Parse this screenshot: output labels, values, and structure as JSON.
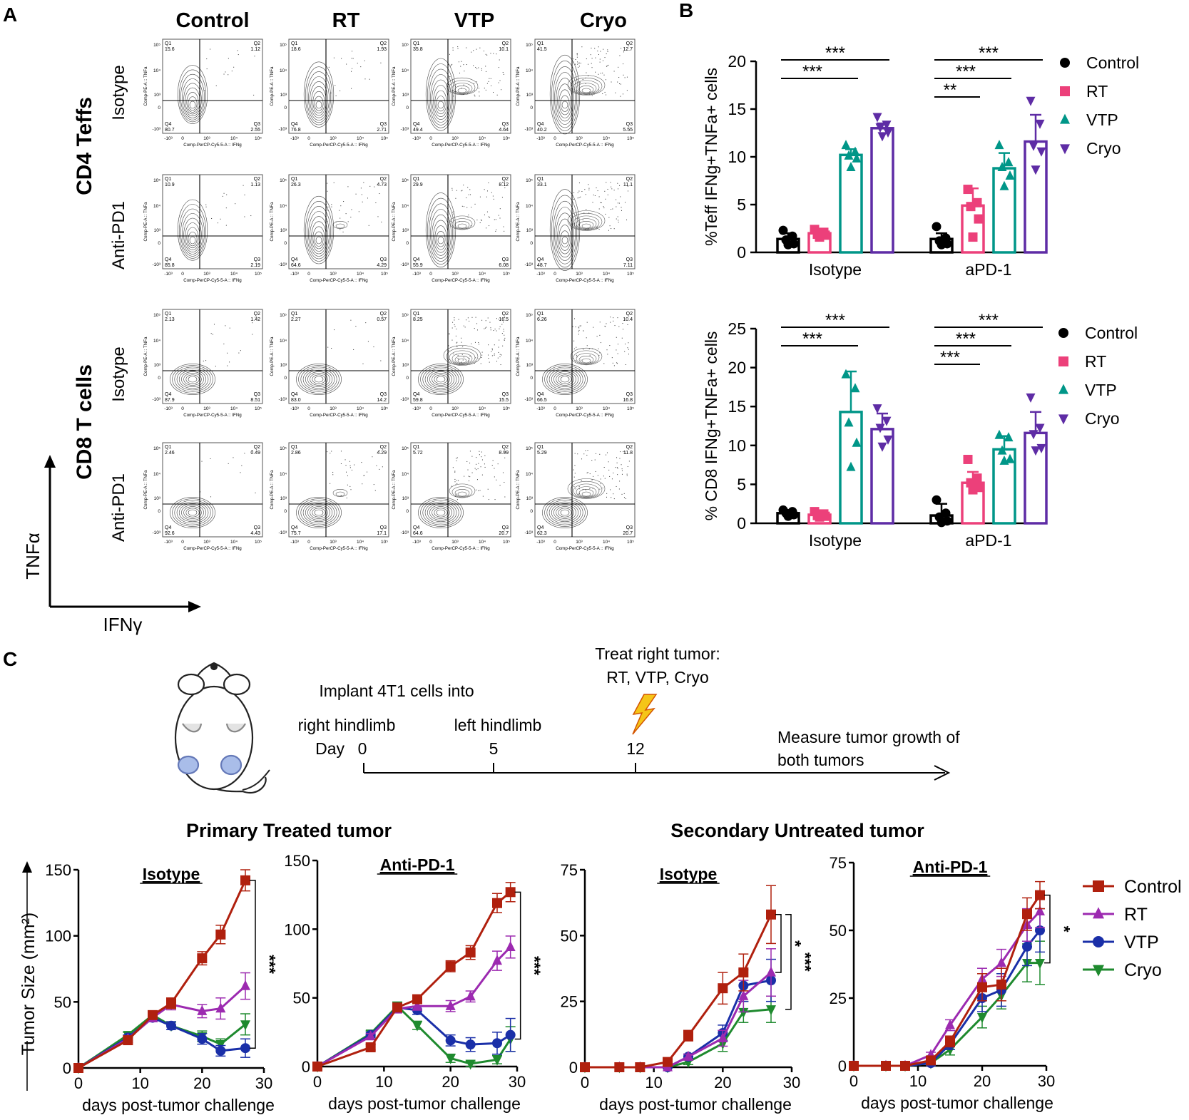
{
  "colors": {
    "control": "#000000",
    "rt": "#ec407a",
    "vtp": "#009688",
    "cryo": "#5e2ca5",
    "curve_control": "#b0200e",
    "curve_rt": "#9c2ab0",
    "curve_vtp": "#1a2fa8",
    "curve_cryo": "#1e8a2e"
  },
  "panel_a": {
    "letter": "A",
    "columns": [
      "Control",
      "RT",
      "VTP",
      "Cryo"
    ],
    "groups": [
      {
        "label": "CD4 Teffs",
        "rows": [
          "Isotype",
          "Anti-PD1"
        ]
      },
      {
        "label": "CD8 T cells",
        "rows": [
          "Isotype",
          "Anti-PD1"
        ]
      }
    ],
    "y_axis_label": "TNFα",
    "x_axis_label": "IFNγ",
    "plot_y_title": "Comp-PE-A :: TNFa",
    "plot_x_title": "Comp-PerCP-Cy5-5-A :: IFNg",
    "axis_ticks": {
      "y": [
        "10⁵",
        "10⁴",
        "10³",
        "0",
        "-10³"
      ],
      "x": [
        "-10³",
        "0",
        "10³",
        "10⁴",
        "10⁵"
      ]
    },
    "quadrant_names": [
      "Q1",
      "Q2",
      "Q3",
      "Q4"
    ],
    "plots": [
      [
        [
          "15.6",
          "1.12",
          "2.55",
          "80.7"
        ],
        [
          "18.6",
          "1.93",
          "2.71",
          "76.8"
        ],
        [
          "35.8",
          "10.1",
          "4.64",
          "49.4"
        ],
        [
          "41.5",
          "12.7",
          "5.55",
          "40.2"
        ]
      ],
      [
        [
          "10.9",
          "1.13",
          "2.19",
          "85.8"
        ],
        [
          "26.3",
          "4.73",
          "4.29",
          "64.6"
        ],
        [
          "29.9",
          "8.12",
          "6.08",
          "55.9"
        ],
        [
          "33.1",
          "11.1",
          "7.11",
          "48.7"
        ]
      ],
      [
        [
          "2.13",
          "1.42",
          "8.51",
          "87.9"
        ],
        [
          "2.27",
          "0.57",
          "14.2",
          "83.0"
        ],
        [
          "8.25",
          "16.5",
          "15.5",
          "59.8"
        ],
        [
          "6.26",
          "10.4",
          "16.8",
          "66.5"
        ]
      ],
      [
        [
          "2.46",
          "0.49",
          "4.43",
          "92.6"
        ],
        [
          "2.86",
          "4.29",
          "17.1",
          "75.7"
        ],
        [
          "5.72",
          "8.99",
          "20.7",
          "64.6"
        ],
        [
          "5.29",
          "11.8",
          "20.7",
          "62.3"
        ]
      ]
    ]
  },
  "panel_b": {
    "letter": "B"
  },
  "panel_c": {
    "letter": "C",
    "timeline": {
      "implant_label": "Implant 4T1 cells into",
      "right_label": "right hindlimb",
      "left_label": "left hindlimb",
      "day_label": "Day",
      "days": [
        "0",
        "5",
        "12"
      ],
      "treat_label_1": "Treat right tumor:",
      "treat_label_2": "RT, VTP, Cryo",
      "measure_label_1": "Measure tumor growth of",
      "measure_label_2": "both tumors"
    },
    "primary_title": "Primary Treated tumor",
    "secondary_title": "Secondary Untreated tumor",
    "y_axis_label": "Tumor Size (mm²)"
  },
  "chart_data": [
    {
      "type": "bar",
      "id": "cd4",
      "ylabel": "%Teff IFNg+TNFa+ cells",
      "ylim": [
        0,
        20
      ],
      "yticks": [
        0,
        5,
        10,
        15,
        20
      ],
      "categories": [
        "Isotype",
        "aPD-1"
      ],
      "series": [
        {
          "name": "Control",
          "marker": "circle",
          "means": [
            1.4,
            1.4
          ],
          "sd": [
            0.6,
            0.6
          ],
          "points": [
            [
              2.3,
              1.7,
              1.3,
              0.9,
              0.8
            ],
            [
              2.7,
              1.5,
              1.2,
              0.9,
              0.8
            ]
          ]
        },
        {
          "name": "RT",
          "marker": "square",
          "means": [
            2.0,
            4.9
          ],
          "sd": [
            0.3,
            1.8
          ],
          "points": [
            [
              2.4,
              2.1,
              1.9,
              1.8,
              1.6
            ],
            [
              6.6,
              5.2,
              4.8,
              3.5,
              1.6
            ]
          ]
        },
        {
          "name": "VTP",
          "marker": "triangle",
          "means": [
            10.2,
            8.8
          ],
          "sd": [
            0.6,
            1.6
          ],
          "points": [
            [
              11.2,
              10.5,
              10.1,
              9.8,
              8.9
            ],
            [
              11.2,
              9.4,
              8.9,
              8.0,
              6.9
            ]
          ]
        },
        {
          "name": "Cryo",
          "marker": "triangle-down",
          "means": [
            13.0,
            11.6
          ],
          "sd": [
            0.5,
            2.8
          ],
          "points": [
            [
              14.2,
              13.4,
              13.1,
              12.6,
              12.2
            ],
            [
              15.9,
              13.5,
              11.2,
              10.6,
              8.7
            ]
          ]
        }
      ],
      "significance": [
        {
          "group": "Isotype",
          "from": "Control",
          "to": "Cryo",
          "label": "***"
        },
        {
          "group": "Isotype",
          "from": "Control",
          "to": "VTP",
          "label": "***"
        },
        {
          "group": "aPD-1",
          "from": "Control",
          "to": "Cryo",
          "label": "***"
        },
        {
          "group": "aPD-1",
          "from": "Control",
          "to": "VTP",
          "label": "***"
        },
        {
          "group": "aPD-1",
          "from": "Control",
          "to": "RT",
          "label": "**"
        }
      ]
    },
    {
      "type": "bar",
      "id": "cd8",
      "ylabel": "% CD8 IFNg+TNFa+ cells",
      "ylim": [
        0,
        25
      ],
      "yticks": [
        0,
        5,
        10,
        15,
        20,
        25
      ],
      "categories": [
        "Isotype",
        "aPD-1"
      ],
      "series": [
        {
          "name": "Control",
          "marker": "circle",
          "means": [
            1.3,
            1.0
          ],
          "sd": [
            0.4,
            1.5
          ],
          "points": [
            [
              1.7,
              1.5,
              1.3,
              1.1,
              0.9
            ],
            [
              3.0,
              1.3,
              0.8,
              0.3,
              0.1
            ]
          ]
        },
        {
          "name": "RT",
          "marker": "square",
          "means": [
            1.1,
            5.2
          ],
          "sd": [
            0.3,
            1.4
          ],
          "points": [
            [
              1.5,
              1.2,
              1.0,
              0.9,
              0.8
            ],
            [
              8.2,
              5.8,
              5.2,
              4.6,
              4.3
            ]
          ]
        },
        {
          "name": "VTP",
          "marker": "triangle",
          "means": [
            14.3,
            9.5
          ],
          "sd": [
            5.2,
            1.7
          ],
          "points": [
            [
              19.1,
              17.3,
              12.9,
              10.3,
              7.2
            ],
            [
              11.3,
              11.0,
              9.3,
              8.2,
              8.0
            ]
          ]
        },
        {
          "name": "Cryo",
          "marker": "triangle-down",
          "means": [
            12.1,
            11.6
          ],
          "sd": [
            2.0,
            2.7
          ],
          "points": [
            [
              14.8,
              13.2,
              12.3,
              10.8,
              9.9
            ],
            [
              16.2,
              12.3,
              11.5,
              9.7,
              9.4
            ]
          ]
        }
      ],
      "significance": [
        {
          "group": "Isotype",
          "from": "Control",
          "to": "Cryo",
          "label": "***"
        },
        {
          "group": "Isotype",
          "from": "Control",
          "to": "VTP",
          "label": "***"
        },
        {
          "group": "aPD-1",
          "from": "Control",
          "to": "Cryo",
          "label": "***"
        },
        {
          "group": "aPD-1",
          "from": "Control",
          "to": "VTP",
          "label": "***"
        },
        {
          "group": "aPD-1",
          "from": "Control",
          "to": "RT",
          "label": "***"
        }
      ]
    },
    {
      "type": "line",
      "id": "prim_iso",
      "title": "Isotype",
      "xlabel": "days post-tumor challenge",
      "xlim": [
        0,
        30
      ],
      "ylim": [
        0,
        150
      ],
      "xticks": [
        0,
        10,
        20,
        30
      ],
      "yticks": [
        0,
        50,
        100,
        150
      ],
      "series": [
        {
          "name": "Control",
          "x": [
            0,
            8,
            12,
            15,
            20,
            23,
            27
          ],
          "y": [
            0,
            21,
            40,
            49,
            83,
            101,
            142
          ],
          "err": [
            0,
            2,
            3,
            4,
            5,
            7,
            8
          ]
        },
        {
          "name": "RT",
          "x": [
            0,
            8,
            12,
            15,
            20,
            23,
            27
          ],
          "y": [
            0,
            22,
            38,
            48,
            43,
            45,
            62
          ],
          "err": [
            0,
            2,
            3,
            4,
            5,
            8,
            10
          ]
        },
        {
          "name": "VTP",
          "x": [
            0,
            8,
            12,
            15,
            20,
            23,
            27
          ],
          "y": [
            0,
            23,
            38,
            32,
            22,
            13,
            15
          ],
          "err": [
            0,
            2,
            3,
            3,
            4,
            4,
            7
          ]
        },
        {
          "name": "Cryo",
          "x": [
            0,
            8,
            12,
            15,
            20,
            23,
            27
          ],
          "y": [
            0,
            25,
            40,
            32,
            24,
            18,
            33
          ],
          "err": [
            0,
            2,
            3,
            3,
            4,
            4,
            8
          ]
        }
      ],
      "brackets": [
        {
          "from": "Control",
          "to": "VTP",
          "at_x": 27,
          "label": "***"
        }
      ]
    },
    {
      "type": "line",
      "id": "prim_pd1",
      "title": "Anti-PD-1",
      "xlabel": "days post-tumor challenge",
      "xlim": [
        0,
        30
      ],
      "ylim": [
        0,
        150
      ],
      "xticks": [
        0,
        10,
        20,
        30
      ],
      "yticks": [
        0,
        50,
        100,
        150
      ],
      "series": [
        {
          "name": "Control",
          "x": [
            0,
            8,
            12,
            15,
            20,
            23,
            27,
            29
          ],
          "y": [
            0,
            14,
            43,
            49,
            73,
            83,
            119,
            127
          ],
          "err": [
            0,
            2,
            3,
            3,
            4,
            5,
            7,
            7
          ]
        },
        {
          "name": "RT",
          "x": [
            0,
            8,
            12,
            15,
            20,
            23,
            27,
            29
          ],
          "y": [
            0,
            22,
            42,
            44,
            44,
            51,
            77,
            87
          ],
          "err": [
            0,
            2,
            3,
            3,
            4,
            4,
            7,
            8
          ]
        },
        {
          "name": "VTP",
          "x": [
            0,
            8,
            12,
            15,
            20,
            23,
            27,
            29
          ],
          "y": [
            0,
            23,
            43,
            41,
            19,
            16,
            17,
            23
          ],
          "err": [
            0,
            2,
            3,
            3,
            4,
            5,
            8,
            12
          ]
        },
        {
          "name": "Cryo",
          "x": [
            0,
            8,
            12,
            15,
            20,
            23,
            27,
            29
          ],
          "y": [
            0,
            24,
            44,
            30,
            6,
            2,
            5,
            20
          ],
          "err": [
            0,
            2,
            3,
            3,
            3,
            2,
            3,
            9
          ]
        }
      ],
      "brackets": [
        {
          "from": "Control",
          "to": "Cryo",
          "at_x": 29,
          "label": "***"
        }
      ]
    },
    {
      "type": "line",
      "id": "sec_iso",
      "title": "Isotype",
      "xlabel": "days post-tumor challenge",
      "xlim": [
        0,
        30
      ],
      "ylim": [
        0,
        75
      ],
      "xticks": [
        0,
        10,
        20,
        30
      ],
      "yticks": [
        0,
        25,
        50,
        75
      ],
      "series": [
        {
          "name": "Control",
          "x": [
            0,
            5,
            8,
            12,
            15,
            20,
            23,
            27
          ],
          "y": [
            0,
            0,
            0,
            2,
            12,
            30,
            36,
            58
          ],
          "err": [
            0,
            0,
            0,
            1,
            2,
            6,
            7,
            11
          ]
        },
        {
          "name": "RT",
          "x": [
            0,
            5,
            8,
            12,
            15,
            20,
            23,
            27
          ],
          "y": [
            0,
            0,
            0,
            0,
            4,
            11,
            27,
            36
          ],
          "err": [
            0,
            0,
            0,
            0,
            1,
            3,
            6,
            9
          ]
        },
        {
          "name": "VTP",
          "x": [
            0,
            5,
            8,
            12,
            15,
            20,
            23,
            27
          ],
          "y": [
            0,
            0,
            0,
            0,
            4,
            13,
            31,
            33
          ],
          "err": [
            0,
            0,
            0,
            0,
            1,
            3,
            6,
            8
          ]
        },
        {
          "name": "Cryo",
          "x": [
            0,
            5,
            8,
            12,
            15,
            20,
            23,
            27
          ],
          "y": [
            0,
            0,
            0,
            0,
            2,
            9,
            21,
            22
          ],
          "err": [
            0,
            0,
            0,
            0,
            1,
            3,
            4,
            5
          ]
        }
      ],
      "brackets": [
        {
          "from": "Control",
          "to": "RT",
          "at_x": 27,
          "label": "*"
        },
        {
          "from": "Control",
          "to": "Cryo",
          "at_x": 27,
          "label": "***",
          "outer": true
        }
      ]
    },
    {
      "type": "line",
      "id": "sec_pd1",
      "title": "Anti-PD-1",
      "xlabel": "days post-tumor challenge",
      "xlim": [
        0,
        30
      ],
      "ylim": [
        0,
        75
      ],
      "xticks": [
        0,
        10,
        20,
        30
      ],
      "yticks": [
        0,
        25,
        50,
        75
      ],
      "series": [
        {
          "name": "Control",
          "x": [
            0,
            5,
            8,
            12,
            15,
            20,
            23,
            27,
            29
          ],
          "y": [
            0,
            0,
            0,
            2,
            9,
            29,
            30,
            56,
            63
          ],
          "err": [
            0,
            0,
            0,
            1,
            2,
            5,
            6,
            6,
            5
          ]
        },
        {
          "name": "RT",
          "x": [
            0,
            5,
            8,
            12,
            15,
            20,
            23,
            27,
            29
          ],
          "y": [
            0,
            0,
            0,
            4,
            15,
            32,
            38,
            52,
            57
          ],
          "err": [
            0,
            0,
            0,
            1,
            2,
            4,
            5,
            6,
            6
          ]
        },
        {
          "name": "VTP",
          "x": [
            0,
            5,
            8,
            12,
            15,
            20,
            23,
            27,
            29
          ],
          "y": [
            0,
            0,
            0,
            1,
            8,
            25,
            28,
            44,
            50
          ],
          "err": [
            0,
            0,
            0,
            1,
            2,
            5,
            6,
            7,
            8
          ]
        },
        {
          "name": "Cryo",
          "x": [
            0,
            5,
            8,
            12,
            15,
            20,
            23,
            27,
            29
          ],
          "y": [
            0,
            0,
            0,
            1,
            6,
            18,
            26,
            38,
            38
          ],
          "err": [
            0,
            0,
            0,
            1,
            2,
            4,
            5,
            7,
            8
          ]
        }
      ],
      "brackets": [
        {
          "from": "Control",
          "to": "Cryo",
          "at_x": 29,
          "label": "*"
        }
      ]
    }
  ]
}
